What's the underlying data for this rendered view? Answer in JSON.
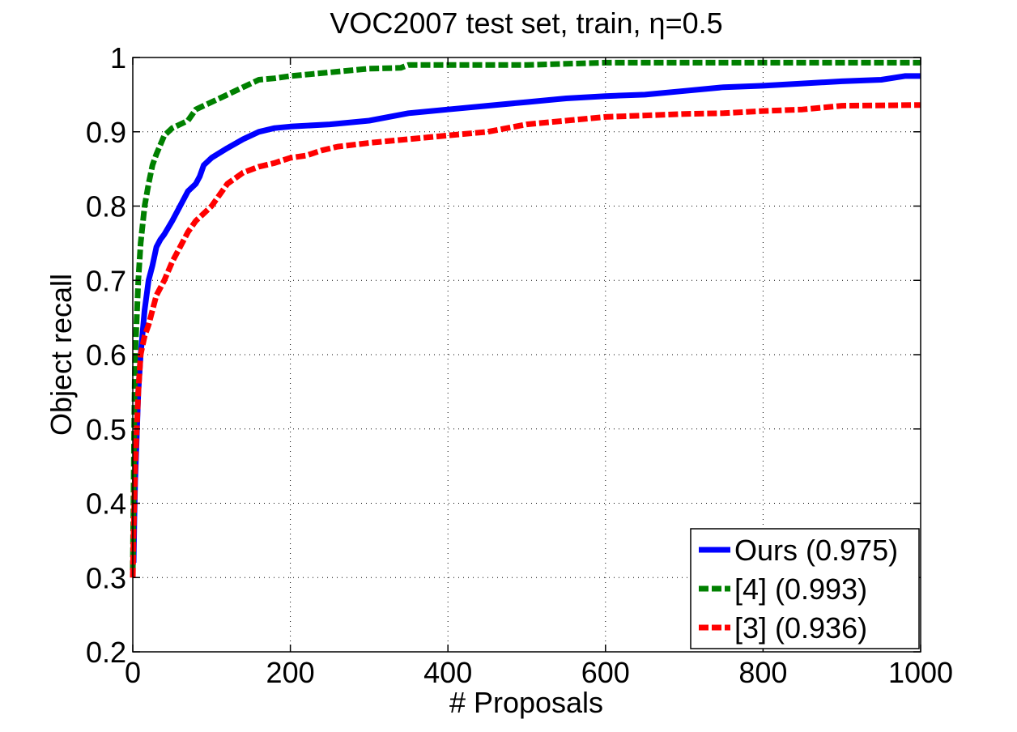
{
  "chart_data": {
    "type": "line",
    "title": "VOC2007 test set, train, η=0.5",
    "xlabel": "# Proposals",
    "ylabel": "Object recall",
    "xlim": [
      0,
      1000
    ],
    "ylim": [
      0.2,
      1.0
    ],
    "grid": true,
    "legend_position": "bottom-right",
    "x_ticks": [
      "0",
      "200",
      "400",
      "600",
      "800",
      "1000"
    ],
    "y_ticks": [
      "0.2",
      "0.3",
      "0.4",
      "0.5",
      "0.6",
      "0.7",
      "0.8",
      "0.9",
      "1"
    ],
    "series": [
      {
        "name": "Ours",
        "legend_label": "Ours (0.975)",
        "color": "#0000ff",
        "dash": "solid",
        "x": [
          1,
          2,
          3,
          5,
          7,
          10,
          15,
          20,
          25,
          30,
          35,
          40,
          50,
          60,
          70,
          80,
          85,
          90,
          95,
          100,
          120,
          140,
          160,
          180,
          200,
          250,
          300,
          350,
          400,
          450,
          500,
          550,
          600,
          650,
          700,
          750,
          800,
          850,
          900,
          950,
          980,
          1000
        ],
        "y": [
          0.32,
          0.38,
          0.43,
          0.49,
          0.55,
          0.6,
          0.66,
          0.7,
          0.72,
          0.745,
          0.755,
          0.762,
          0.78,
          0.8,
          0.82,
          0.83,
          0.84,
          0.855,
          0.86,
          0.865,
          0.878,
          0.89,
          0.9,
          0.905,
          0.907,
          0.91,
          0.915,
          0.925,
          0.93,
          0.935,
          0.94,
          0.945,
          0.948,
          0.95,
          0.955,
          0.96,
          0.962,
          0.965,
          0.968,
          0.97,
          0.975,
          0.975
        ]
      },
      {
        "name": "[4]",
        "legend_label": "[4] (0.993)",
        "color": "#008000",
        "dash": "dashed",
        "x": [
          0,
          1,
          2,
          3,
          5,
          7,
          10,
          15,
          20,
          25,
          30,
          40,
          50,
          60,
          70,
          80,
          90,
          100,
          120,
          140,
          160,
          180,
          200,
          250,
          300,
          340,
          350,
          400,
          500,
          600,
          700,
          800,
          900,
          1000
        ],
        "y": [
          0.31,
          0.42,
          0.52,
          0.6,
          0.65,
          0.7,
          0.75,
          0.8,
          0.83,
          0.855,
          0.87,
          0.895,
          0.905,
          0.91,
          0.915,
          0.93,
          0.935,
          0.94,
          0.95,
          0.96,
          0.97,
          0.972,
          0.975,
          0.98,
          0.985,
          0.986,
          0.99,
          0.99,
          0.99,
          0.993,
          0.993,
          0.993,
          0.993,
          0.993
        ]
      },
      {
        "name": "[3]",
        "legend_label": "[3] (0.936)",
        "color": "#ff0000",
        "dash": "dashed",
        "x": [
          0,
          1,
          2,
          3,
          5,
          7,
          10,
          15,
          20,
          25,
          30,
          40,
          50,
          60,
          70,
          80,
          90,
          100,
          120,
          140,
          160,
          180,
          200,
          220,
          240,
          260,
          300,
          350,
          400,
          450,
          500,
          550,
          600,
          650,
          700,
          750,
          800,
          850,
          900,
          1000
        ],
        "y": [
          0.3,
          0.36,
          0.4,
          0.45,
          0.5,
          0.55,
          0.6,
          0.625,
          0.64,
          0.66,
          0.68,
          0.7,
          0.725,
          0.745,
          0.765,
          0.78,
          0.79,
          0.8,
          0.83,
          0.845,
          0.853,
          0.858,
          0.865,
          0.868,
          0.875,
          0.88,
          0.885,
          0.89,
          0.895,
          0.9,
          0.91,
          0.915,
          0.92,
          0.922,
          0.924,
          0.925,
          0.928,
          0.93,
          0.935,
          0.936
        ]
      }
    ]
  }
}
